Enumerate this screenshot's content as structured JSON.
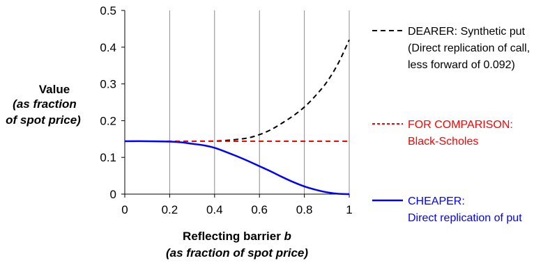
{
  "chart_data": {
    "type": "line",
    "title": "",
    "ylabel": {
      "line1": "Value",
      "line2": "(as fraction",
      "line3": "of spot price)"
    },
    "xlabel": {
      "line1": "Reflecting barrier ",
      "var": "b",
      "line2": "(as fraction of spot price)"
    },
    "xlim": [
      0,
      1
    ],
    "ylim": [
      0,
      0.5
    ],
    "xticks": [
      0,
      0.2,
      0.4,
      0.6,
      0.8,
      1
    ],
    "xtick_labels": [
      "0",
      "0.2",
      "0.4",
      "0.6",
      "0.8",
      "1"
    ],
    "yticks": [
      0,
      0.1,
      0.2,
      0.3,
      0.4,
      0.5
    ],
    "ytick_labels": [
      "0",
      "0.1",
      "0.2",
      "0.3",
      "0.4",
      "0.5"
    ],
    "grid": "vertical",
    "legend_position": "right",
    "series": [
      {
        "name": "DEARER: Synthetic put",
        "legend_lines": [
          "DEARER: Synthetic put",
          "(Direct replication of call,",
          "less forward of 0.092)"
        ],
        "color": "#000000",
        "dash": "dashed",
        "x": [
          0,
          0.1,
          0.2,
          0.25,
          0.3,
          0.35,
          0.4,
          0.45,
          0.5,
          0.55,
          0.6,
          0.65,
          0.7,
          0.75,
          0.8,
          0.85,
          0.9,
          0.95,
          1.0
        ],
        "y": [
          0.144,
          0.144,
          0.144,
          0.144,
          0.144,
          0.1442,
          0.1445,
          0.146,
          0.149,
          0.153,
          0.162,
          0.175,
          0.193,
          0.213,
          0.237,
          0.268,
          0.305,
          0.355,
          0.42
        ]
      },
      {
        "name": "FOR COMPARISON: Black-Scholes",
        "legend_lines": [
          "FOR COMPARISON:",
          "Black-Scholes"
        ],
        "color": "#ff0000",
        "dash": "dashed",
        "x": [
          0,
          1
        ],
        "y": [
          0.144,
          0.144
        ]
      },
      {
        "name": "CHEAPER: Direct replication of put",
        "legend_lines": [
          "CHEAPER:",
          "Direct replication of put"
        ],
        "color": "#0000ff",
        "dash": "solid",
        "x": [
          0,
          0.1,
          0.2,
          0.25,
          0.3,
          0.35,
          0.4,
          0.45,
          0.5,
          0.55,
          0.6,
          0.65,
          0.7,
          0.75,
          0.8,
          0.85,
          0.9,
          0.95,
          1.0
        ],
        "y": [
          0.144,
          0.144,
          0.143,
          0.141,
          0.137,
          0.133,
          0.126,
          0.115,
          0.103,
          0.09,
          0.076,
          0.062,
          0.047,
          0.033,
          0.021,
          0.012,
          0.005,
          0.001,
          0.0
        ]
      }
    ]
  }
}
